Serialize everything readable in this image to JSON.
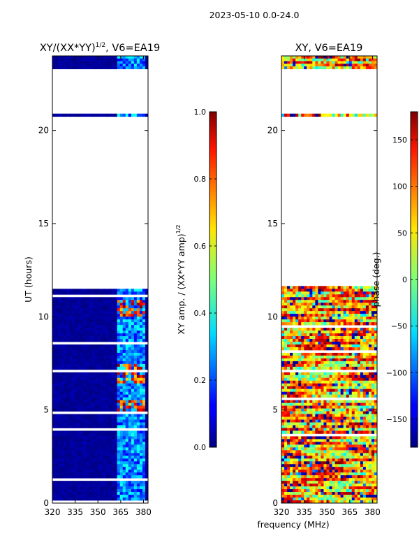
{
  "figure_title": "2023-05-10 0.0-24.0",
  "x_axis_label": "frequency (MHz)",
  "chart_data": [
    {
      "type": "heatmap",
      "title": "XY/(XX*YY)^1/2, V6=EA19",
      "title_main": "XY/(XX*YY)",
      "title_exp": "1/2",
      "title_rest": ", V6=EA19",
      "xlabel": "frequency (MHz)",
      "ylabel": "UT (hours)",
      "xlim": [
        320,
        383
      ],
      "ylim": [
        0,
        24
      ],
      "xticks": [
        320,
        335,
        350,
        365,
        380
      ],
      "yticks": [
        0,
        5,
        10,
        15,
        20
      ],
      "colorbar": {
        "label_main": "XY amp. / (XX*YY amp)",
        "label_exp": "1/2",
        "range": [
          0.0,
          1.0
        ],
        "ticks": [
          "0.0",
          "0.2",
          "0.4",
          "0.6",
          "0.8",
          "1.0"
        ],
        "tick_values": [
          0.0,
          0.2,
          0.4,
          0.6,
          0.8,
          1.0
        ],
        "colormap": "jet"
      },
      "data_blocks_hours": [
        [
          0,
          11.65
        ],
        [
          20.75,
          20.9
        ],
        [
          23.3,
          24
        ]
      ],
      "high_value_channel_band_mhz": [
        363,
        382
      ],
      "high_value_hours": [
        6.8,
        7.3,
        10.4,
        10.7,
        5.1,
        5.3
      ]
    },
    {
      "type": "heatmap",
      "title": "XY, V6=EA19",
      "xlabel": "frequency (MHz)",
      "ylabel": "",
      "xlim": [
        320,
        383
      ],
      "ylim": [
        0,
        24
      ],
      "xticks": [
        320,
        335,
        350,
        365,
        380
      ],
      "yticks": [
        0,
        5,
        10,
        15,
        20
      ],
      "colorbar": {
        "label": "phase (deg.)",
        "range": [
          -180,
          180
        ],
        "ticks": [
          "−150",
          "−100",
          "−50",
          "0",
          "50",
          "100",
          "150"
        ],
        "tick_values": [
          -150,
          -100,
          -50,
          0,
          50,
          100,
          150
        ],
        "colormap": "jet"
      },
      "data_blocks_hours": [
        [
          0,
          11.65
        ],
        [
          20.75,
          20.9
        ],
        [
          23.3,
          24
        ]
      ]
    }
  ]
}
